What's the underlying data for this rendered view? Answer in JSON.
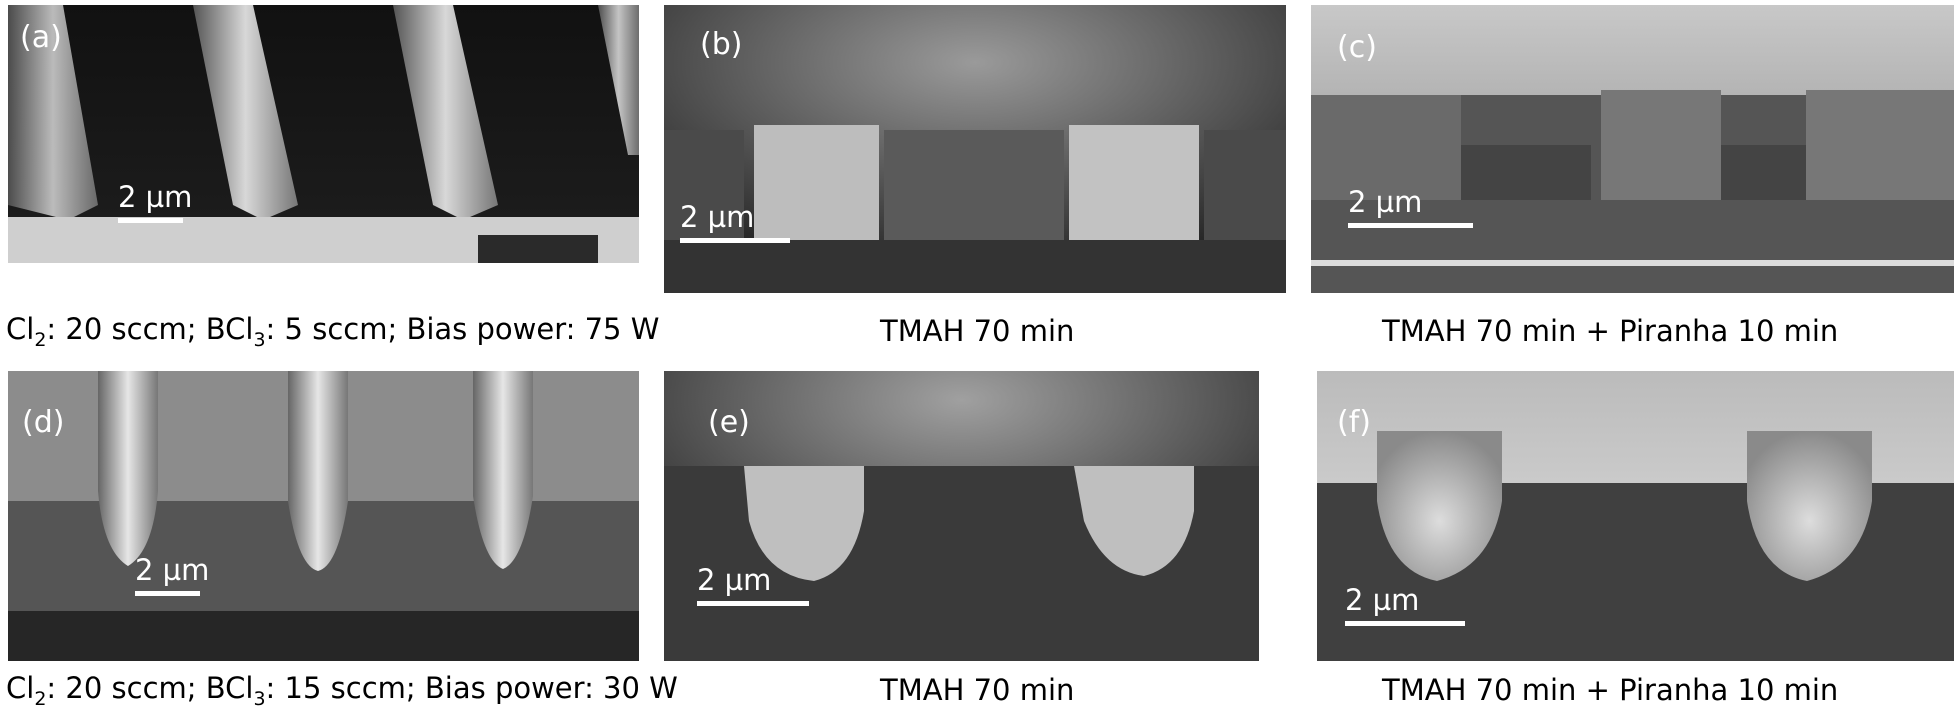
{
  "panels": {
    "a": {
      "label": "(a)",
      "scale": "2 µm"
    },
    "b": {
      "label": "(b)",
      "scale": "2 µm"
    },
    "c": {
      "label": "(c)",
      "scale": "2 µm"
    },
    "d": {
      "label": "(d)",
      "scale": "2 µm"
    },
    "e": {
      "label": "(e)",
      "scale": "2 µm"
    },
    "f": {
      "label": "(f)",
      "scale": "2 µm"
    }
  },
  "captions": {
    "row1_left": {
      "p1": "Cl",
      "s1": "2",
      "p2": ": 20 sccm; BCl",
      "s2": "3",
      "p3": ": 5 sccm; Bias power: 75 W"
    },
    "row1_mid": "TMAH 70 min",
    "row1_right": "TMAH 70 min + Piranha 10 min",
    "row2_left": {
      "p1": "Cl",
      "s1": "2",
      "p2": ": 20 sccm; BCl",
      "s2": "3",
      "p3": ": 15 sccm; Bias power: 30 W"
    },
    "row2_mid": "TMAH 70 min",
    "row2_right": "TMAH 70 min + Piranha 10 min"
  }
}
